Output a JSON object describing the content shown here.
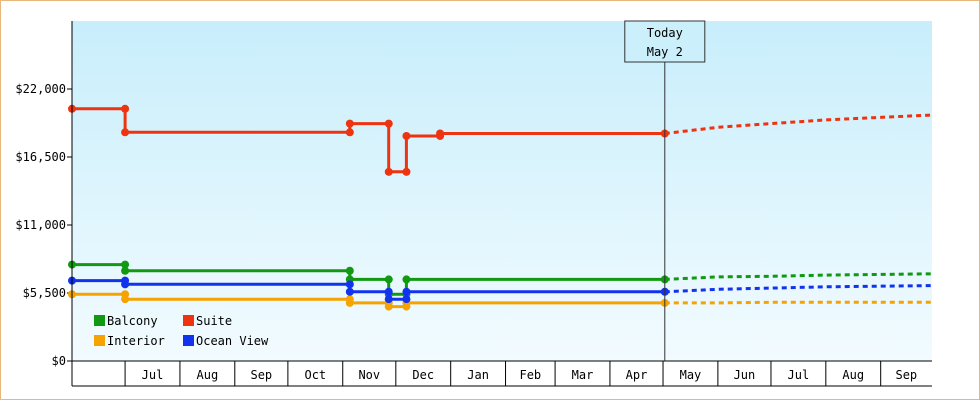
{
  "chart_data": {
    "type": "line",
    "title": "",
    "xlabel": "",
    "ylabel": "",
    "ylim": [
      0,
      27500
    ],
    "y_ticks": [
      {
        "value": 0,
        "label": "$0"
      },
      {
        "value": 5500,
        "label": "$5,500"
      },
      {
        "value": 11000,
        "label": "$11,000"
      },
      {
        "value": 16500,
        "label": "$16,500"
      },
      {
        "value": 22000,
        "label": "$22,000"
      }
    ],
    "x_range": [
      "2022-06-01",
      "2023-09-30"
    ],
    "month_ticks": [
      {
        "label": "Jul",
        "start": "2022-07-01"
      },
      {
        "label": "Aug",
        "start": "2022-08-01"
      },
      {
        "label": "Sep",
        "start": "2022-09-01"
      },
      {
        "label": "Oct",
        "start": "2022-10-01"
      },
      {
        "label": "Nov",
        "start": "2022-11-01"
      },
      {
        "label": "Dec",
        "start": "2022-12-01"
      },
      {
        "label": "Jan",
        "start": "2023-01-01"
      },
      {
        "label": "Feb",
        "start": "2023-02-01"
      },
      {
        "label": "Mar",
        "start": "2023-03-01"
      },
      {
        "label": "Apr",
        "start": "2023-04-01"
      },
      {
        "label": "May",
        "start": "2023-05-01"
      },
      {
        "label": "Jun",
        "start": "2023-06-01"
      },
      {
        "label": "Jul",
        "start": "2023-07-01"
      },
      {
        "label": "Aug",
        "start": "2023-08-01"
      },
      {
        "label": "Sep",
        "start": "2023-09-01"
      }
    ],
    "today": {
      "line1": "Today",
      "line2": "May 2",
      "date": "2023-05-02"
    },
    "grid": false,
    "legend_position": "bottom-left",
    "series": [
      {
        "name": "Balcony",
        "color": "#119911",
        "points": [
          {
            "date": "2022-06-01",
            "value": 7800
          },
          {
            "date": "2022-07-01",
            "value": 7800
          },
          {
            "date": "2022-07-01",
            "value": 7300
          },
          {
            "date": "2022-11-05",
            "value": 7300
          },
          {
            "date": "2022-11-05",
            "value": 6600
          },
          {
            "date": "2022-11-27",
            "value": 6600
          },
          {
            "date": "2022-11-27",
            "value": 5400
          },
          {
            "date": "2022-12-07",
            "value": 5400
          },
          {
            "date": "2022-12-07",
            "value": 6600
          },
          {
            "date": "2023-05-02",
            "value": 6600
          }
        ],
        "forecast": [
          {
            "date": "2023-05-02",
            "value": 6600
          },
          {
            "date": "2023-06-01",
            "value": 6800
          },
          {
            "date": "2023-07-01",
            "value": 6850
          },
          {
            "date": "2023-08-01",
            "value": 6950
          },
          {
            "date": "2023-09-30",
            "value": 7050
          }
        ]
      },
      {
        "name": "Suite",
        "color": "#ee3311",
        "points": [
          {
            "date": "2022-06-01",
            "value": 20400
          },
          {
            "date": "2022-07-01",
            "value": 20400
          },
          {
            "date": "2022-07-01",
            "value": 18500
          },
          {
            "date": "2022-11-05",
            "value": 18500
          },
          {
            "date": "2022-11-05",
            "value": 19200
          },
          {
            "date": "2022-11-27",
            "value": 19200
          },
          {
            "date": "2022-11-27",
            "value": 15300
          },
          {
            "date": "2022-12-07",
            "value": 15300
          },
          {
            "date": "2022-12-07",
            "value": 18200
          },
          {
            "date": "2022-12-26",
            "value": 18200
          },
          {
            "date": "2022-12-26",
            "value": 18400
          },
          {
            "date": "2023-05-02",
            "value": 18400
          }
        ],
        "forecast": [
          {
            "date": "2023-05-02",
            "value": 18400
          },
          {
            "date": "2023-06-01",
            "value": 18900
          },
          {
            "date": "2023-07-01",
            "value": 19200
          },
          {
            "date": "2023-08-01",
            "value": 19500
          },
          {
            "date": "2023-09-30",
            "value": 19900
          }
        ]
      },
      {
        "name": "Interior",
        "color": "#f5a300",
        "points": [
          {
            "date": "2022-06-01",
            "value": 5400
          },
          {
            "date": "2022-07-01",
            "value": 5400
          },
          {
            "date": "2022-07-01",
            "value": 5000
          },
          {
            "date": "2022-11-05",
            "value": 5000
          },
          {
            "date": "2022-11-05",
            "value": 4700
          },
          {
            "date": "2022-11-27",
            "value": 4700
          },
          {
            "date": "2022-11-27",
            "value": 4400
          },
          {
            "date": "2022-12-07",
            "value": 4400
          },
          {
            "date": "2022-12-07",
            "value": 4700
          },
          {
            "date": "2023-05-02",
            "value": 4700
          }
        ],
        "forecast": [
          {
            "date": "2023-05-02",
            "value": 4700
          },
          {
            "date": "2023-06-01",
            "value": 4700
          },
          {
            "date": "2023-07-01",
            "value": 4750
          },
          {
            "date": "2023-08-01",
            "value": 4750
          },
          {
            "date": "2023-09-30",
            "value": 4750
          }
        ]
      },
      {
        "name": "Ocean View",
        "color": "#1133ee",
        "points": [
          {
            "date": "2022-06-01",
            "value": 6500
          },
          {
            "date": "2022-07-01",
            "value": 6500
          },
          {
            "date": "2022-07-01",
            "value": 6200
          },
          {
            "date": "2022-11-05",
            "value": 6200
          },
          {
            "date": "2022-11-05",
            "value": 5600
          },
          {
            "date": "2022-11-27",
            "value": 5600
          },
          {
            "date": "2022-11-27",
            "value": 5000
          },
          {
            "date": "2022-12-07",
            "value": 5000
          },
          {
            "date": "2022-12-07",
            "value": 5600
          },
          {
            "date": "2023-05-02",
            "value": 5600
          }
        ],
        "forecast": [
          {
            "date": "2023-05-02",
            "value": 5600
          },
          {
            "date": "2023-06-01",
            "value": 5800
          },
          {
            "date": "2023-07-01",
            "value": 5900
          },
          {
            "date": "2023-08-01",
            "value": 6000
          },
          {
            "date": "2023-09-30",
            "value": 6100
          }
        ]
      }
    ]
  }
}
